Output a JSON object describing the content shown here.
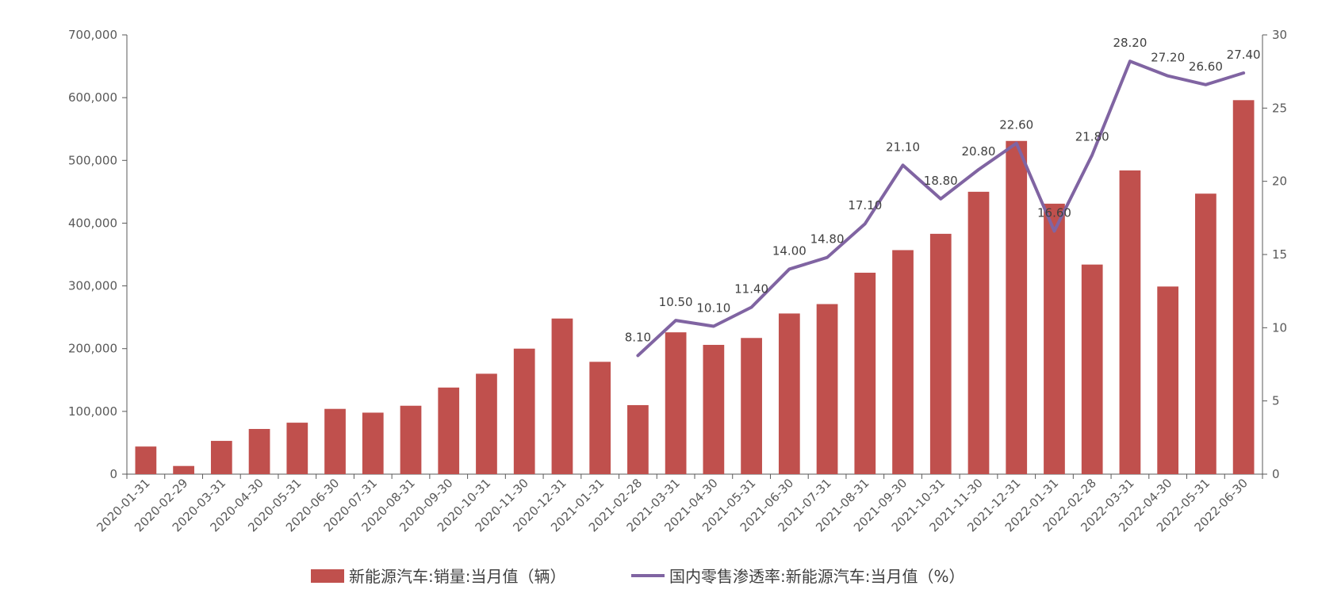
{
  "chart_data": {
    "type": "bar",
    "title": "",
    "categories": [
      "2020-01-31",
      "2020-02-29",
      "2020-03-31",
      "2020-04-30",
      "2020-05-31",
      "2020-06-30",
      "2020-07-31",
      "2020-08-31",
      "2020-09-30",
      "2020-10-31",
      "2020-11-30",
      "2020-12-31",
      "2021-01-31",
      "2021-02-28",
      "2021-03-31",
      "2021-04-30",
      "2021-05-31",
      "2021-06-30",
      "2021-07-31",
      "2021-08-31",
      "2021-09-30",
      "2021-10-31",
      "2021-11-30",
      "2021-12-31",
      "2022-01-31",
      "2022-02-28",
      "2022-03-31",
      "2022-04-30",
      "2022-05-31",
      "2022-06-30"
    ],
    "series": [
      {
        "name": "新能源汽车:销量:当月值（辆）",
        "type": "bar",
        "axis": "left",
        "color": "#c0504d",
        "values": [
          44000,
          13000,
          53000,
          72000,
          82000,
          104000,
          98000,
          109000,
          138000,
          160000,
          200000,
          248000,
          179000,
          110000,
          226000,
          206000,
          217000,
          256000,
          271000,
          321000,
          357000,
          383000,
          450000,
          531000,
          431000,
          334000,
          484000,
          299000,
          447000,
          596000
        ]
      },
      {
        "name": "国内零售渗透率:新能源汽车:当月值（%）",
        "type": "line",
        "axis": "right",
        "color": "#8064a2",
        "values": [
          null,
          null,
          null,
          null,
          null,
          null,
          null,
          null,
          null,
          null,
          null,
          null,
          null,
          8.1,
          10.5,
          10.1,
          11.4,
          14.0,
          14.8,
          17.1,
          21.1,
          18.8,
          20.8,
          22.6,
          16.6,
          21.8,
          28.2,
          27.2,
          26.6,
          27.4
        ],
        "labels": [
          "",
          "",
          "",
          "",
          "",
          "",
          "",
          "",
          "",
          "",
          "",
          "",
          "",
          "8.10",
          "10.50",
          "10.10",
          "11.40",
          "14.00",
          "14.80",
          "17.10",
          "21.10",
          "18.80",
          "20.80",
          "22.60",
          "16.60",
          "21.80",
          "28.20",
          "27.20",
          "26.60",
          "27.40"
        ]
      }
    ],
    "y_left": {
      "ylim": [
        0,
        700000
      ],
      "ticks": [
        0,
        100000,
        200000,
        300000,
        400000,
        500000,
        600000,
        700000
      ],
      "tick_labels": [
        "0",
        "100,000",
        "200,000",
        "300,000",
        "400,000",
        "500,000",
        "600,000",
        "700,000"
      ]
    },
    "y_right": {
      "ylim": [
        0,
        30
      ],
      "ticks": [
        0,
        5,
        10,
        15,
        20,
        25,
        30
      ],
      "tick_labels": [
        "0",
        "5",
        "10",
        "15",
        "20",
        "25",
        "30"
      ]
    },
    "xlabel": "",
    "ylabel": "",
    "legend": "bottom",
    "grid": false
  }
}
